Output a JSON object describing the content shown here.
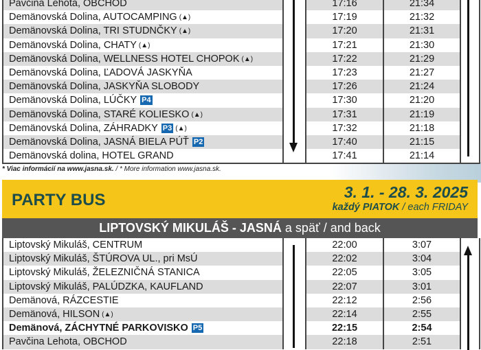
{
  "top_table": {
    "rows": [
      {
        "stop": "Pavčina Lehota, OBCHOD",
        "t1": "17:16",
        "t2": "21:34",
        "bell": false,
        "parking": ""
      },
      {
        "stop": "Demänovská Dolina, AUTOCAMPING",
        "t1": "17:19",
        "t2": "21:32",
        "bell": true,
        "parking": ""
      },
      {
        "stop": "Demänovská Dolina, TRI STUDNČKY",
        "t1": "17:20",
        "t2": "21:31",
        "bell": true,
        "parking": ""
      },
      {
        "stop": "Demänovská Dolina, CHATY",
        "t1": "17:21",
        "t2": "21:30",
        "bell": true,
        "parking": ""
      },
      {
        "stop": "Demänovská Dolina, WELLNESS HOTEL CHOPOK",
        "t1": "17:22",
        "t2": "21:29",
        "bell": true,
        "parking": ""
      },
      {
        "stop": "Demänovská Dolina, ĽADOVÁ JASKYŇA",
        "t1": "17:23",
        "t2": "21:27",
        "bell": false,
        "parking": ""
      },
      {
        "stop": "Demänovská Dolina, JASKYŇA SLOBODY",
        "t1": "17:26",
        "t2": "21:24",
        "bell": false,
        "parking": ""
      },
      {
        "stop": "Demänovská Dolina, LÚČKY",
        "t1": "17:30",
        "t2": "21:20",
        "bell": false,
        "parking": "P4"
      },
      {
        "stop": "Demänovská Dolina, STARÉ KOLIESKO",
        "t1": "17:31",
        "t2": "21:19",
        "bell": true,
        "parking": ""
      },
      {
        "stop": "Demänovská Dolina, ZÁHRADKY",
        "t1": "17:32",
        "t2": "21:18",
        "bell": true,
        "parking": "P3"
      },
      {
        "stop": "Demänovská Dolina, JASNÁ BIELA PÚŤ",
        "t1": "17:40",
        "t2": "21:15",
        "bell": false,
        "parking": "P2"
      },
      {
        "stop": "Demänovská dolina, HOTEL GRAND",
        "t1": "17:41",
        "t2": "21:14",
        "bell": false,
        "parking": ""
      }
    ]
  },
  "footnote": {
    "sk": "* Viac informácií na www.jasna.sk.",
    "en": " / * More information www.jasna.sk."
  },
  "party_bus": {
    "title": "PARTY BUS",
    "dates": "3. 1. - 28. 3. 2025",
    "every_sk": "každý PIATOK",
    "every_en": " / each FRIDAY",
    "route_bold": "LIPTOVSKÝ MIKULÁŠ - JASNÁ",
    "route_rest": " a späť / and back",
    "rows": [
      {
        "stop": "Liptovský Mikuláš, CENTRUM",
        "t1": "22:00",
        "t2": "3:07",
        "bell": false,
        "parking": ""
      },
      {
        "stop": "Liptovský Mikuláš, ŠTÚROVA UL., pri MsÚ",
        "t1": "22:02",
        "t2": "3:04",
        "bell": false,
        "parking": ""
      },
      {
        "stop": "Liptovský Mikuláš, ŽELEZNIČNÁ STANICA",
        "t1": "22:05",
        "t2": "3:05",
        "bell": false,
        "parking": ""
      },
      {
        "stop": "Liptovský Mikuláš, PALÚDZKA, KAUFLAND",
        "t1": "22:07",
        "t2": "3:01",
        "bell": false,
        "parking": ""
      },
      {
        "stop": "Demänová, RÁZCESTIE",
        "t1": "22:12",
        "t2": "2:56",
        "bell": false,
        "parking": ""
      },
      {
        "stop": "Demänová, HILSON",
        "t1": "22:14",
        "t2": "2:55",
        "bell": true,
        "parking": ""
      },
      {
        "stop": "Demänová, ZÁCHYTNÉ PARKOVISKO",
        "t1": "22:15",
        "t2": "2:54",
        "bell": false,
        "parking": "P5",
        "bold": true
      },
      {
        "stop": "Pavčina Lehota, OBCHOD",
        "t1": "22:18",
        "t2": "2:51",
        "bell": false,
        "parking": ""
      }
    ]
  },
  "colors": {
    "yellow": "#f6c51a",
    "title_teal": "#1d4d4b",
    "route_bar": "#555555",
    "parking_blue": "#1669b0",
    "row_gray": "#dcdcdc"
  }
}
